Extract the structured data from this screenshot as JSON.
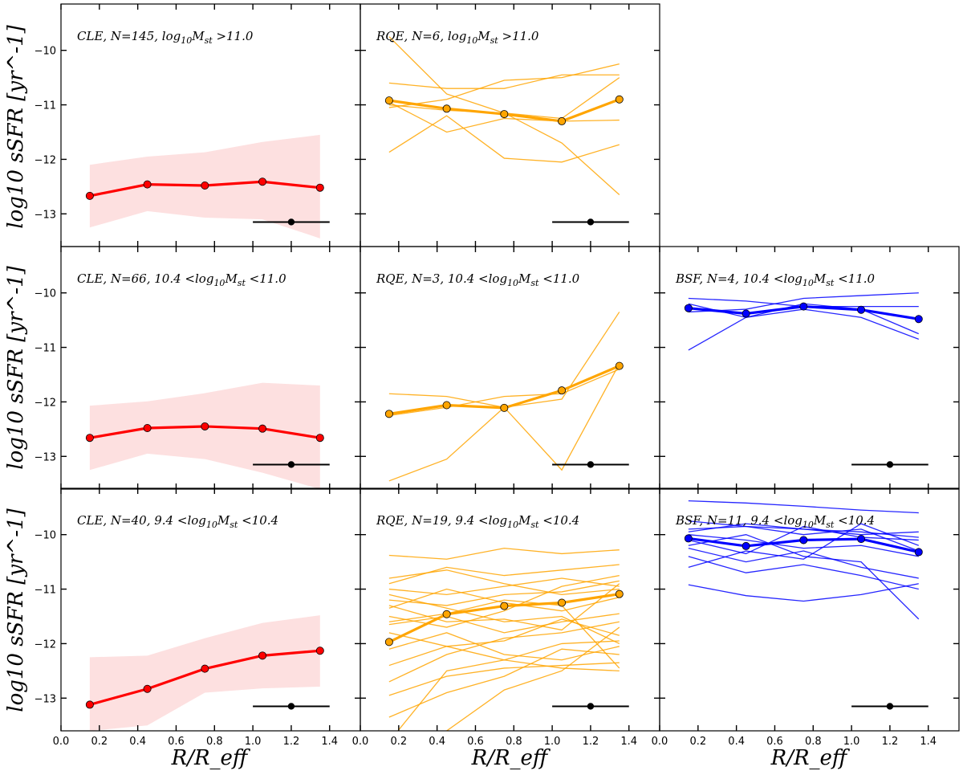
{
  "figure": {
    "ylabel": "log10 sSFR [yr^-1]",
    "xlabel": "R/R_eff"
  },
  "chart_data": {
    "type": "line",
    "layout": "3x3 grid of line panels; columns CLE, RQE, BSF; rows high, intermediate, low stellar mass",
    "xlabel": "R/R_eff",
    "ylabel": "log10 sSFR [yr^-1]",
    "xlim": [
      0.0,
      1.56
    ],
    "ylim": [
      -13.6,
      -9.15
    ],
    "xticks": [
      0.0,
      0.2,
      0.4,
      0.6,
      0.8,
      1.0,
      1.2,
      1.4
    ],
    "xtick_labels": [
      "0.0",
      "0.2",
      "0.4",
      "0.6",
      "0.8",
      "1.0",
      "1.2",
      "1.4"
    ],
    "yticks": [
      -13,
      -12,
      -11,
      -10
    ],
    "ytick_labels": [
      "−13",
      "−12",
      "−11",
      "−10"
    ],
    "colors": {
      "CLE": "#ff0000",
      "CLE_band": "#fde0e0",
      "RQE": "#ffa500",
      "BSF": "#0000ff",
      "error": "#000000"
    },
    "x": [
      0.15,
      0.45,
      0.75,
      1.05,
      1.35
    ],
    "panels": [
      {
        "id": "cle-high",
        "row": 0,
        "col": 0,
        "group": "CLE",
        "label_prefix": "CLE, N=145,",
        "label_range": "log10Mst >11.0",
        "median": [
          -12.67,
          -12.46,
          -12.48,
          -12.41,
          -12.52
        ],
        "band_upper": [
          -12.1,
          -11.95,
          -11.87,
          -11.68,
          -11.55
        ],
        "band_lower": [
          -13.25,
          -12.95,
          -13.07,
          -13.1,
          -13.45
        ],
        "individual": [],
        "errorbar": {
          "x": 1.2,
          "xerr": 0.2,
          "y": -13.15
        }
      },
      {
        "id": "rqe-high",
        "row": 0,
        "col": 1,
        "group": "RQE",
        "label_prefix": "RQE, N=6,",
        "label_range": "log10Mst >11.0",
        "median": [
          -10.92,
          -11.07,
          -11.17,
          -11.3,
          -10.9
        ],
        "individual": [
          [
            -9.75,
            -10.8,
            -11.15,
            -11.7,
            -12.65
          ],
          [
            -10.6,
            -10.7,
            -10.7,
            -10.45,
            -10.45
          ],
          [
            -11.05,
            -10.9,
            -10.55,
            -10.5,
            -10.25
          ],
          [
            -10.95,
            -11.5,
            -11.25,
            -11.3,
            -11.28
          ],
          [
            -11.87,
            -11.2,
            -11.98,
            -12.05,
            -11.73
          ],
          [
            -11.0,
            -11.1,
            -11.15,
            -11.25,
            -10.5
          ]
        ],
        "errorbar": {
          "x": 1.2,
          "xerr": 0.2,
          "y": -13.15
        }
      },
      {
        "id": "cle-mid",
        "row": 1,
        "col": 0,
        "group": "CLE",
        "label_prefix": "CLE, N=66,",
        "label_range": "10.4 <log10Mst <11.0",
        "median": [
          -12.66,
          -12.48,
          -12.45,
          -12.49,
          -12.66
        ],
        "band_upper": [
          -12.07,
          -11.99,
          -11.84,
          -11.65,
          -11.7
        ],
        "band_lower": [
          -13.25,
          -12.95,
          -13.05,
          -13.3,
          -13.6
        ],
        "individual": [],
        "errorbar": {
          "x": 1.2,
          "xerr": 0.2,
          "y": -13.15
        }
      },
      {
        "id": "rqe-mid",
        "row": 1,
        "col": 1,
        "group": "RQE",
        "label_prefix": "RQE, N=3,",
        "label_range": "10.4 <log10Mst <11.0",
        "median": [
          -12.22,
          -12.06,
          -12.11,
          -11.79,
          -11.34
        ],
        "individual": [
          [
            -13.45,
            -13.05,
            -12.1,
            -11.95,
            -10.35
          ],
          [
            -11.85,
            -11.9,
            -12.1,
            -13.25,
            -11.3
          ],
          [
            -12.25,
            -12.1,
            -11.9,
            -11.85,
            -11.4
          ]
        ],
        "errorbar": {
          "x": 1.2,
          "xerr": 0.2,
          "y": -13.15
        }
      },
      {
        "id": "bsf-mid",
        "row": 1,
        "col": 2,
        "group": "BSF",
        "label_prefix": "BSF, N=4,",
        "label_range": "10.4 <log10Mst <11.0",
        "median": [
          -10.28,
          -10.38,
          -10.25,
          -10.31,
          -10.48
        ],
        "individual": [
          [
            -11.05,
            -10.45,
            -10.3,
            -10.45,
            -10.85
          ],
          [
            -10.1,
            -10.15,
            -10.25,
            -10.25,
            -10.25
          ],
          [
            -10.2,
            -10.45,
            -10.2,
            -10.3,
            -10.75
          ],
          [
            -10.35,
            -10.3,
            -10.1,
            -10.05,
            -10.0
          ]
        ],
        "errorbar": {
          "x": 1.2,
          "xerr": 0.2,
          "y": -13.15
        }
      },
      {
        "id": "cle-low",
        "row": 2,
        "col": 0,
        "group": "CLE",
        "label_prefix": "CLE, N=40,",
        "label_range": "9.4 <log10Mst <10.4",
        "median": [
          -13.12,
          -12.83,
          -12.46,
          -12.22,
          -12.13
        ],
        "band_upper": [
          -12.25,
          -12.22,
          -11.9,
          -11.62,
          -11.48
        ],
        "band_lower": [
          -13.6,
          -13.5,
          -12.9,
          -12.82,
          -12.79
        ],
        "individual": [],
        "errorbar": {
          "x": 1.2,
          "xerr": 0.2,
          "y": -13.15
        }
      },
      {
        "id": "rqe-low",
        "row": 2,
        "col": 1,
        "group": "RQE",
        "label_prefix": "RQE, N=19,",
        "label_range": "9.4 <log10Mst <10.4",
        "median": [
          -11.97,
          -11.46,
          -11.31,
          -11.25,
          -11.09
        ],
        "individual": [
          [
            -10.38,
            -10.45,
            -10.25,
            -10.35,
            -10.28
          ],
          [
            -10.9,
            -10.6,
            -10.75,
            -10.65,
            -10.55
          ],
          [
            -11.0,
            -11.1,
            -10.95,
            -10.8,
            -10.95
          ],
          [
            -11.2,
            -11.3,
            -11.1,
            -11.05,
            -10.85
          ],
          [
            -11.35,
            -11.0,
            -11.25,
            -11.4,
            -11.15
          ],
          [
            -11.5,
            -11.7,
            -11.4,
            -10.95,
            -10.75
          ],
          [
            -11.65,
            -11.5,
            -11.8,
            -11.6,
            -11.45
          ],
          [
            -11.8,
            -12.05,
            -11.95,
            -11.55,
            -11.85
          ],
          [
            -12.1,
            -11.8,
            -12.2,
            -12.3,
            -12.05
          ],
          [
            -12.4,
            -12.05,
            -12.3,
            -12.0,
            -11.95
          ],
          [
            -12.7,
            -12.2,
            -11.9,
            -11.8,
            -11.6
          ],
          [
            -12.95,
            -12.6,
            -12.45,
            -12.4,
            -12.35
          ],
          [
            -13.35,
            -12.9,
            -12.6,
            -12.1,
            -12.2
          ],
          [
            -13.7,
            -13.6,
            -12.85,
            -12.5,
            -11.7
          ],
          [
            -13.8,
            -12.5,
            -12.3,
            -12.45,
            -12.5
          ],
          [
            -11.1,
            -11.35,
            -11.6,
            -11.5,
            -12.0
          ],
          [
            -10.8,
            -10.65,
            -10.9,
            -11.1,
            -11.0
          ],
          [
            -11.6,
            -11.45,
            -11.2,
            -11.3,
            -12.45
          ],
          [
            -11.3,
            -11.6,
            -11.55,
            -11.75,
            -10.9
          ]
        ],
        "errorbar": {
          "x": 1.2,
          "xerr": 0.2,
          "y": -13.15
        }
      },
      {
        "id": "bsf-low",
        "row": 2,
        "col": 2,
        "group": "BSF",
        "label_prefix": "BSF, N=11,",
        "label_range": "9.4 <log10Mst <10.4",
        "median": [
          -10.07,
          -10.21,
          -10.1,
          -10.08,
          -10.32
        ],
        "individual": [
          [
            -9.38,
            -9.42,
            -9.48,
            -9.55,
            -9.6
          ],
          [
            -9.75,
            -9.85,
            -9.9,
            -9.95,
            -10.05
          ],
          [
            -9.9,
            -9.85,
            -10.0,
            -9.9,
            -10.3
          ],
          [
            -10.0,
            -10.1,
            -10.25,
            -10.2,
            -10.4
          ],
          [
            -10.1,
            -10.35,
            -9.85,
            -10.05,
            -10.1
          ],
          [
            -10.25,
            -10.5,
            -10.3,
            -10.6,
            -10.8
          ],
          [
            -10.4,
            -10.7,
            -10.55,
            -10.75,
            -11.0
          ],
          [
            -10.6,
            -10.3,
            -10.45,
            -9.8,
            -10.2
          ],
          [
            -10.92,
            -11.12,
            -11.22,
            -11.1,
            -10.9
          ],
          [
            -9.95,
            -9.8,
            -9.9,
            -10.0,
            -9.95
          ],
          [
            -10.2,
            -10.0,
            -10.4,
            -10.5,
            -11.55
          ]
        ],
        "errorbar": {
          "x": 1.2,
          "xerr": 0.2,
          "y": -13.15
        }
      }
    ]
  }
}
